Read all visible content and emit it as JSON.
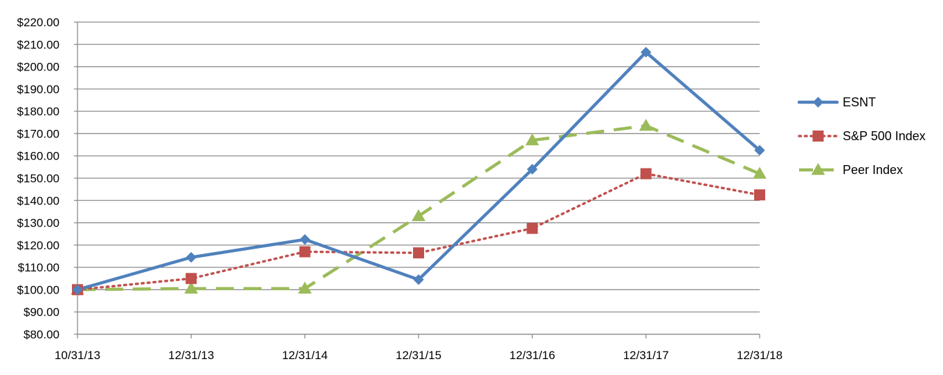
{
  "chart_data": {
    "type": "line",
    "categories": [
      "10/31/13",
      "12/31/13",
      "12/31/14",
      "12/31/15",
      "12/31/16",
      "12/31/17",
      "12/31/18"
    ],
    "series": [
      {
        "name": "ESNT",
        "values": [
          100.0,
          114.5,
          122.5,
          104.5,
          154.0,
          206.5,
          162.5
        ],
        "color": "#4F81BD",
        "line_style": "solid",
        "marker": "diamond"
      },
      {
        "name": "S&P 500 Index",
        "values": [
          100.0,
          105.0,
          117.0,
          116.5,
          127.5,
          152.0,
          142.5
        ],
        "color": "#C0504D",
        "line_style": "dotted",
        "marker": "square"
      },
      {
        "name": "Peer Index",
        "values": [
          100.0,
          100.5,
          100.5,
          133.0,
          167.0,
          173.5,
          152.0
        ],
        "color": "#9BBB59",
        "line_style": "dashed",
        "marker": "triangle"
      }
    ],
    "ylim": [
      80,
      220
    ],
    "ytick_step": 10,
    "ytick_labels": [
      "$80.00",
      "$90.00",
      "$100.00",
      "$110.00",
      "$120.00",
      "$130.00",
      "$140.00",
      "$150.00",
      "$160.00",
      "$170.00",
      "$180.00",
      "$190.00",
      "$200.00",
      "$210.00",
      "$220.00"
    ],
    "title": "",
    "xlabel": "",
    "ylabel": "",
    "grid": true,
    "legend_position": "right"
  }
}
